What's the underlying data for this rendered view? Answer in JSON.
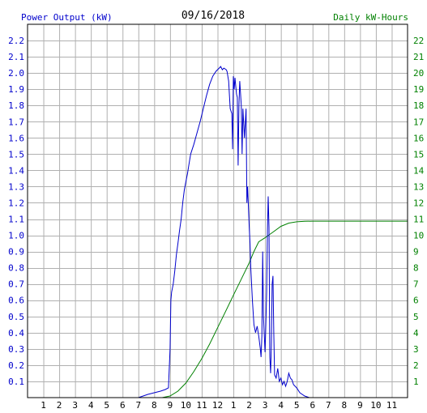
{
  "title": "09/16/2018",
  "chart_data": {
    "type": "line",
    "title": "09/16/2018",
    "y_left_label": "Power Output (kW)",
    "y_right_label": "Daily kW-Hours",
    "x_ticks": [
      "1",
      "2",
      "3",
      "4",
      "5",
      "6",
      "7",
      "8",
      "9",
      "10",
      "11",
      "12",
      "1",
      "2",
      "3",
      "4",
      "5",
      "6",
      "7",
      "8",
      "9",
      "10",
      "11"
    ],
    "x_range_hours": [
      0,
      24
    ],
    "y_left_range": [
      0,
      2.3
    ],
    "y_left_ticks": [
      "0.1",
      "0.2",
      "0.3",
      "0.4",
      "0.5",
      "0.6",
      "0.7",
      "0.8",
      "0.9",
      "1.0",
      "1.1",
      "1.2",
      "1.3",
      "1.4",
      "1.5",
      "1.6",
      "1.7",
      "1.8",
      "1.9",
      "2.0",
      "2.1",
      "2.2"
    ],
    "y_right_range": [
      0,
      23
    ],
    "y_right_ticks": [
      "1",
      "2",
      "3",
      "4",
      "5",
      "6",
      "7",
      "8",
      "9",
      "10",
      "11",
      "12",
      "13",
      "14",
      "15",
      "16",
      "17",
      "18",
      "19",
      "20",
      "21",
      "22"
    ],
    "grid": true,
    "colors": {
      "power": "#0000cc",
      "energy": "#008000",
      "grid": "#b0b0b0",
      "axis": "#000000"
    },
    "series": [
      {
        "name": "Power Output (kW)",
        "axis": "left",
        "points": [
          [
            0,
            0
          ],
          [
            7.0,
            0
          ],
          [
            7.3,
            0.01
          ],
          [
            7.6,
            0.02
          ],
          [
            8.0,
            0.03
          ],
          [
            8.4,
            0.04
          ],
          [
            8.7,
            0.05
          ],
          [
            8.9,
            0.06
          ],
          [
            9.0,
            0.3
          ],
          [
            9.05,
            0.6
          ],
          [
            9.1,
            0.65
          ],
          [
            9.2,
            0.7
          ],
          [
            9.3,
            0.78
          ],
          [
            9.4,
            0.88
          ],
          [
            9.5,
            0.95
          ],
          [
            9.6,
            1.03
          ],
          [
            9.7,
            1.1
          ],
          [
            9.8,
            1.2
          ],
          [
            9.9,
            1.28
          ],
          [
            10.0,
            1.33
          ],
          [
            10.1,
            1.38
          ],
          [
            10.2,
            1.44
          ],
          [
            10.3,
            1.5
          ],
          [
            10.5,
            1.56
          ],
          [
            10.7,
            1.63
          ],
          [
            10.9,
            1.7
          ],
          [
            11.1,
            1.78
          ],
          [
            11.3,
            1.86
          ],
          [
            11.5,
            1.93
          ],
          [
            11.7,
            1.98
          ],
          [
            11.9,
            2.01
          ],
          [
            12.1,
            2.03
          ],
          [
            12.2,
            2.04
          ],
          [
            12.3,
            2.02
          ],
          [
            12.4,
            2.03
          ],
          [
            12.55,
            2.02
          ],
          [
            12.6,
            2.01
          ],
          [
            12.7,
            1.95
          ],
          [
            12.8,
            1.78
          ],
          [
            12.9,
            1.75
          ],
          [
            12.95,
            1.53
          ],
          [
            13.0,
            1.98
          ],
          [
            13.05,
            1.9
          ],
          [
            13.1,
            1.97
          ],
          [
            13.2,
            1.87
          ],
          [
            13.25,
            1.85
          ],
          [
            13.3,
            1.43
          ],
          [
            13.35,
            1.8
          ],
          [
            13.4,
            1.95
          ],
          [
            13.5,
            1.8
          ],
          [
            13.55,
            1.5
          ],
          [
            13.6,
            1.78
          ],
          [
            13.7,
            1.6
          ],
          [
            13.8,
            1.78
          ],
          [
            13.85,
            1.2
          ],
          [
            13.9,
            1.3
          ],
          [
            14.0,
            1.05
          ],
          [
            14.05,
            0.95
          ],
          [
            14.1,
            0.8
          ],
          [
            14.2,
            0.6
          ],
          [
            14.3,
            0.45
          ],
          [
            14.4,
            0.4
          ],
          [
            14.5,
            0.44
          ],
          [
            14.6,
            0.38
          ],
          [
            14.7,
            0.3
          ],
          [
            14.75,
            0.25
          ],
          [
            14.8,
            0.38
          ],
          [
            14.85,
            0.9
          ],
          [
            14.9,
            0.5
          ],
          [
            15.0,
            0.28
          ],
          [
            15.05,
            0.45
          ],
          [
            15.1,
            0.65
          ],
          [
            15.15,
            1.03
          ],
          [
            15.2,
            1.24
          ],
          [
            15.25,
            1.05
          ],
          [
            15.3,
            0.25
          ],
          [
            15.35,
            0.15
          ],
          [
            15.4,
            0.32
          ],
          [
            15.45,
            0.7
          ],
          [
            15.5,
            0.75
          ],
          [
            15.55,
            0.4
          ],
          [
            15.6,
            0.14
          ],
          [
            15.7,
            0.12
          ],
          [
            15.8,
            0.18
          ],
          [
            15.9,
            0.1
          ],
          [
            16.0,
            0.12
          ],
          [
            16.1,
            0.08
          ],
          [
            16.2,
            0.1
          ],
          [
            16.3,
            0.07
          ],
          [
            16.4,
            0.1
          ],
          [
            16.5,
            0.15
          ],
          [
            16.6,
            0.12
          ],
          [
            16.7,
            0.11
          ],
          [
            16.8,
            0.08
          ],
          [
            17.0,
            0.06
          ],
          [
            17.2,
            0.03
          ],
          [
            17.5,
            0.01
          ],
          [
            17.8,
            0
          ],
          [
            24,
            0
          ]
        ]
      },
      {
        "name": "Daily kW-Hours",
        "axis": "right",
        "points": [
          [
            0,
            0
          ],
          [
            8.5,
            0
          ],
          [
            9.0,
            0.1
          ],
          [
            9.5,
            0.4
          ],
          [
            10.0,
            0.9
          ],
          [
            10.5,
            1.6
          ],
          [
            11.0,
            2.4
          ],
          [
            11.5,
            3.3
          ],
          [
            12.0,
            4.3
          ],
          [
            12.5,
            5.3
          ],
          [
            13.0,
            6.3
          ],
          [
            13.5,
            7.3
          ],
          [
            14.0,
            8.3
          ],
          [
            14.3,
            9.0
          ],
          [
            14.6,
            9.6
          ],
          [
            15.0,
            9.85
          ],
          [
            15.5,
            10.2
          ],
          [
            16.0,
            10.55
          ],
          [
            16.5,
            10.75
          ],
          [
            17.0,
            10.83
          ],
          [
            17.5,
            10.86
          ],
          [
            18.0,
            10.87
          ],
          [
            24,
            10.87
          ]
        ]
      }
    ]
  }
}
